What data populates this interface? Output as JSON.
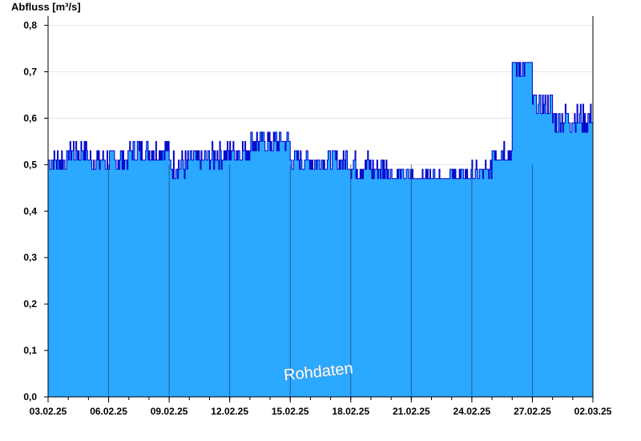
{
  "chart_data": {
    "type": "area",
    "ylabel": "Abfluss [m³/s]",
    "watermark": "Rohdaten",
    "ylim": [
      0,
      0.82
    ],
    "yticks": [
      {
        "value": 0.0,
        "label": "0,0"
      },
      {
        "value": 0.1,
        "label": "0,1"
      },
      {
        "value": 0.2,
        "label": "0,2"
      },
      {
        "value": 0.3,
        "label": "0,3"
      },
      {
        "value": 0.4,
        "label": "0,4"
      },
      {
        "value": 0.5,
        "label": "0,5"
      },
      {
        "value": 0.6,
        "label": "0,6"
      },
      {
        "value": 0.7,
        "label": "0,7"
      },
      {
        "value": 0.8,
        "label": "0,8"
      }
    ],
    "xlim": [
      "2025-02-03",
      "2025-03-02"
    ],
    "xticks": [
      {
        "value": "2025-02-03",
        "label": "03.02.25"
      },
      {
        "value": "2025-02-06",
        "label": "06.02.25"
      },
      {
        "value": "2025-02-09",
        "label": "09.02.25"
      },
      {
        "value": "2025-02-12",
        "label": "12.02.25"
      },
      {
        "value": "2025-02-15",
        "label": "15.02.25"
      },
      {
        "value": "2025-02-18",
        "label": "18.02.25"
      },
      {
        "value": "2025-02-21",
        "label": "21.02.25"
      },
      {
        "value": "2025-02-24",
        "label": "24.02.25"
      },
      {
        "value": "2025-02-27",
        "label": "27.02.25"
      },
      {
        "value": "2025-03-02",
        "label": "02.03.25"
      }
    ],
    "series": [
      {
        "color_fill": "#2ba8ff",
        "color_line": "#0000cc",
        "points": [
          [
            "2025-02-03",
            0.51
          ],
          [
            "2025-02-04",
            0.53
          ],
          [
            "2025-02-05",
            0.51
          ],
          [
            "2025-02-06",
            0.51
          ],
          [
            "2025-02-07",
            0.53
          ],
          [
            "2025-02-08",
            0.53
          ],
          [
            "2025-02-09",
            0.5
          ],
          [
            "2025-02-10",
            0.51
          ],
          [
            "2025-02-11",
            0.52
          ],
          [
            "2025-02-12",
            0.53
          ],
          [
            "2025-02-13",
            0.55
          ],
          [
            "2025-02-14",
            0.55
          ],
          [
            "2025-02-15",
            0.51
          ],
          [
            "2025-02-16",
            0.51
          ],
          [
            "2025-02-17",
            0.51
          ],
          [
            "2025-02-18",
            0.5
          ],
          [
            "2025-02-19",
            0.49
          ],
          [
            "2025-02-20",
            0.47
          ],
          [
            "2025-02-21",
            0.47
          ],
          [
            "2025-02-22",
            0.47
          ],
          [
            "2025-02-23",
            0.47
          ],
          [
            "2025-02-24",
            0.48
          ],
          [
            "2025-02-25",
            0.53
          ],
          [
            "2025-02-26",
            0.72
          ],
          [
            "2025-02-27",
            0.63
          ],
          [
            "2025-02-28",
            0.6
          ],
          [
            "2025-03-01",
            0.6
          ],
          [
            "2025-03-02",
            0.59
          ]
        ]
      }
    ],
    "grid": true,
    "colors": {
      "axis": "#000000",
      "grid": "#e6e6e6",
      "date_lines": "#1a4f80"
    }
  }
}
